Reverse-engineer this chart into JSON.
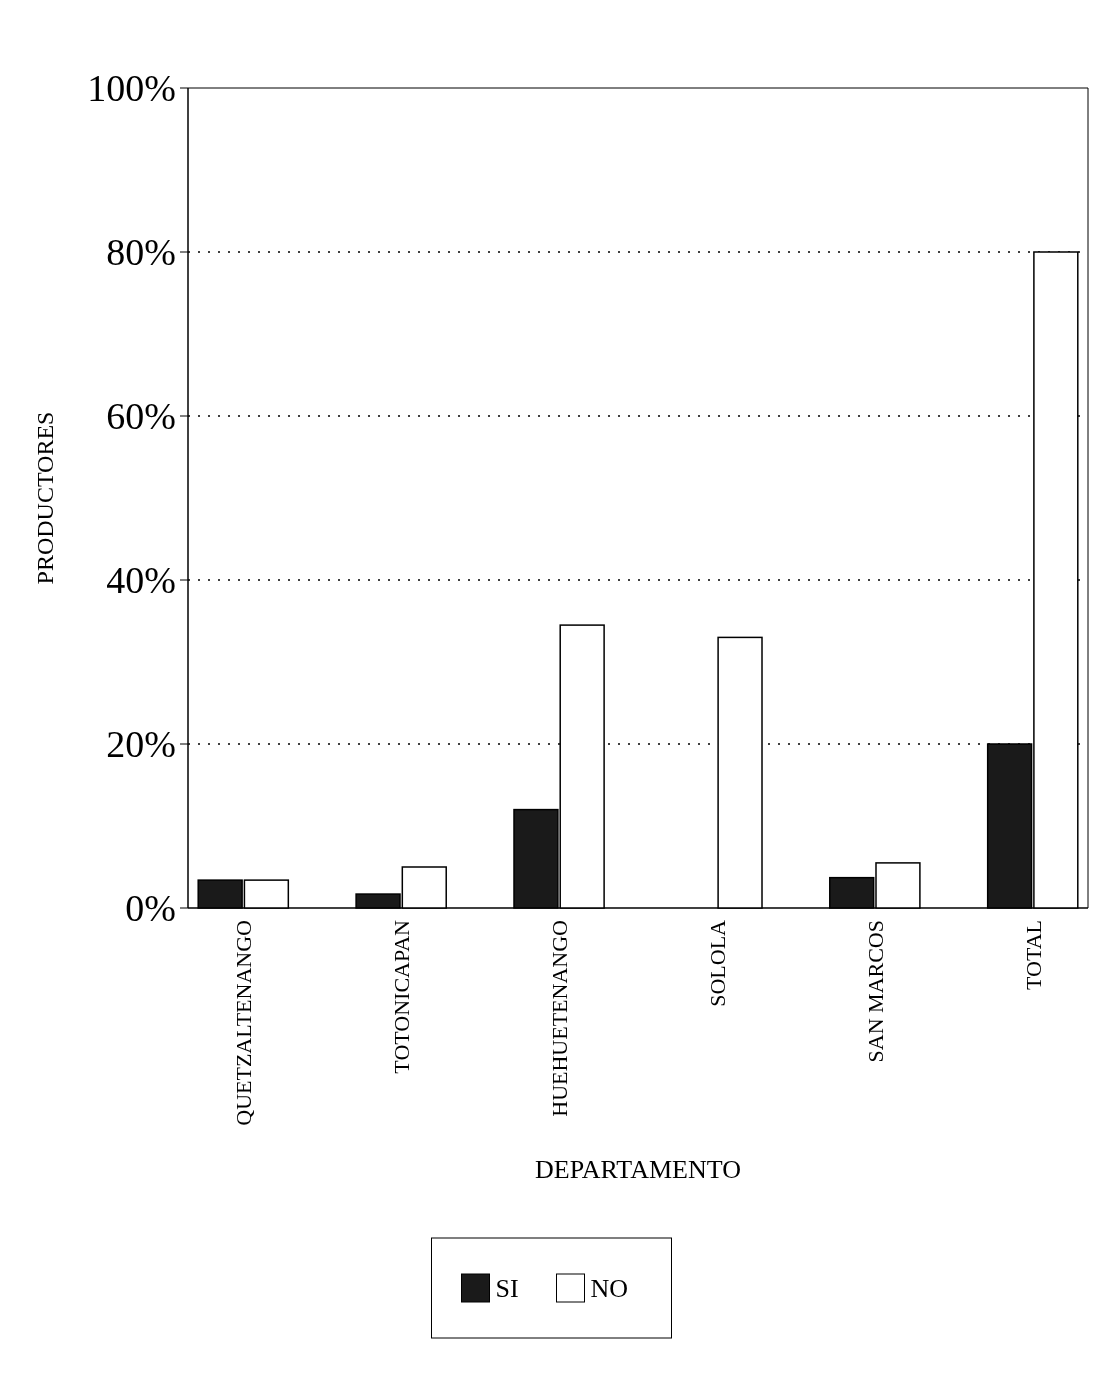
{
  "chart_data": {
    "type": "bar",
    "xlabel": "DEPARTAMENTO",
    "ylabel": "PRODUCTORES",
    "categories": [
      "QUETZALTENANGO",
      "TOTONICAPAN",
      "HUEHUETENANGO",
      "SOLOLA",
      "SAN MARCOS",
      "TOTAL"
    ],
    "series": [
      {
        "name": "SI",
        "color": "#1a1a1a",
        "values": [
          3.4,
          1.7,
          12,
          0,
          3.7,
          20
        ]
      },
      {
        "name": "NO",
        "color": "#ffffff",
        "values": [
          3.4,
          5,
          34.5,
          33,
          5.5,
          80
        ]
      }
    ],
    "ylim": [
      0,
      100
    ],
    "yticks": [
      {
        "value": 0,
        "label": "0%"
      },
      {
        "value": 20,
        "label": "20%"
      },
      {
        "value": 40,
        "label": "40%"
      },
      {
        "value": 60,
        "label": "60%"
      },
      {
        "value": 80,
        "label": "80%"
      },
      {
        "value": 100,
        "label": "100%"
      }
    ],
    "grid": "y",
    "legend": "bottom"
  }
}
